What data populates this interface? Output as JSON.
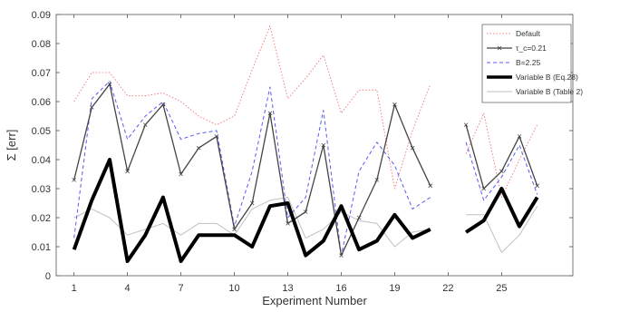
{
  "chart_data": {
    "type": "line",
    "xlabel": "Experiment Number",
    "ylabel": "Σ [err]",
    "xlim": [
      0,
      29
    ],
    "ylim": [
      0,
      0.09
    ],
    "xticks": [
      1,
      4,
      7,
      10,
      13,
      16,
      19,
      22,
      25
    ],
    "xtick_labels": [
      "1",
      "4",
      "7",
      "10",
      "13",
      "16",
      "19",
      "22",
      "25"
    ],
    "yticks": [
      0,
      0.01,
      0.02,
      0.03,
      0.04,
      0.05,
      0.06,
      0.07,
      0.08,
      0.09
    ],
    "ytick_labels": [
      "0",
      "0.01",
      "0.02",
      "0.03",
      "0.04",
      "0.05",
      "0.06",
      "0.07",
      "0.08",
      "0.09"
    ],
    "grid": false,
    "legend_position": "top-right",
    "series": [
      {
        "name": "Default",
        "color": "#f08080",
        "style": "dotted",
        "width": 1,
        "marker": "none",
        "x": [
          1,
          2,
          3,
          4,
          5,
          6,
          7,
          8,
          9,
          10,
          11,
          12,
          13,
          14,
          15,
          16,
          17,
          18,
          19,
          20,
          21,
          null,
          23,
          24,
          25,
          26,
          27
        ],
        "y": [
          0.06,
          0.07,
          0.07,
          0.062,
          0.062,
          0.063,
          0.06,
          0.055,
          0.052,
          0.055,
          0.071,
          0.086,
          0.061,
          0.068,
          0.076,
          0.056,
          0.064,
          0.064,
          0.03,
          0.05,
          0.066,
          null,
          0.042,
          0.056,
          0.027,
          0.04,
          0.052
        ]
      },
      {
        "name": "τ_c=0.21",
        "color": "#444444",
        "style": "solid",
        "width": 1.3,
        "marker": "x",
        "x": [
          1,
          2,
          3,
          4,
          5,
          6,
          7,
          8,
          9,
          10,
          11,
          12,
          13,
          14,
          15,
          16,
          17,
          18,
          19,
          20,
          21,
          null,
          23,
          24,
          25,
          26,
          27
        ],
        "y": [
          0.033,
          0.058,
          0.066,
          0.036,
          0.052,
          0.059,
          0.035,
          0.044,
          0.048,
          0.016,
          0.025,
          0.056,
          0.018,
          0.022,
          0.045,
          0.007,
          0.02,
          0.033,
          0.059,
          0.044,
          0.031,
          null,
          0.052,
          0.03,
          0.036,
          0.048,
          0.031
        ]
      },
      {
        "name": "B=2.25",
        "color": "#5a5af0",
        "style": "dashed",
        "width": 1,
        "marker": "none",
        "x": [
          1,
          2,
          3,
          4,
          5,
          6,
          7,
          8,
          9,
          10,
          11,
          12,
          13,
          14,
          15,
          16,
          17,
          18,
          19,
          20,
          21,
          null,
          23,
          24,
          25,
          26,
          27
        ],
        "y": [
          0.013,
          0.061,
          0.067,
          0.047,
          0.055,
          0.06,
          0.047,
          0.049,
          0.05,
          0.017,
          0.036,
          0.065,
          0.02,
          0.027,
          0.057,
          0.007,
          0.036,
          0.046,
          0.038,
          0.023,
          0.027,
          null,
          0.046,
          0.026,
          0.034,
          0.045,
          0.028
        ]
      },
      {
        "name": "Variable B (Eq.28)",
        "color": "#000000",
        "style": "solid",
        "width": 4,
        "marker": "none",
        "x": [
          1,
          2,
          3,
          4,
          5,
          6,
          7,
          8,
          9,
          10,
          11,
          12,
          13,
          14,
          15,
          16,
          17,
          18,
          19,
          20,
          21,
          null,
          23,
          24,
          25,
          26,
          27
        ],
        "y": [
          0.009,
          0.026,
          0.04,
          0.005,
          0.014,
          0.027,
          0.005,
          0.014,
          0.014,
          0.014,
          0.01,
          0.024,
          0.025,
          0.007,
          0.012,
          0.024,
          0.009,
          0.012,
          0.021,
          0.013,
          0.016,
          null,
          0.015,
          0.019,
          0.03,
          0.017,
          0.027
        ]
      },
      {
        "name": "Variable B (Table 2)",
        "color": "#c0c0c0",
        "style": "solid",
        "width": 1,
        "marker": "none",
        "x": [
          1,
          2,
          3,
          4,
          5,
          6,
          7,
          8,
          9,
          10,
          11,
          12,
          13,
          14,
          15,
          16,
          17,
          18,
          19,
          20,
          21,
          null,
          23,
          24,
          25,
          26,
          27
        ],
        "y": [
          0.02,
          0.023,
          0.02,
          0.014,
          0.016,
          0.018,
          0.014,
          0.018,
          0.018,
          0.014,
          0.023,
          0.026,
          0.027,
          0.013,
          0.016,
          0.022,
          0.019,
          0.018,
          0.01,
          0.015,
          0.016,
          null,
          0.021,
          0.021,
          0.008,
          0.014,
          0.024
        ]
      }
    ]
  }
}
